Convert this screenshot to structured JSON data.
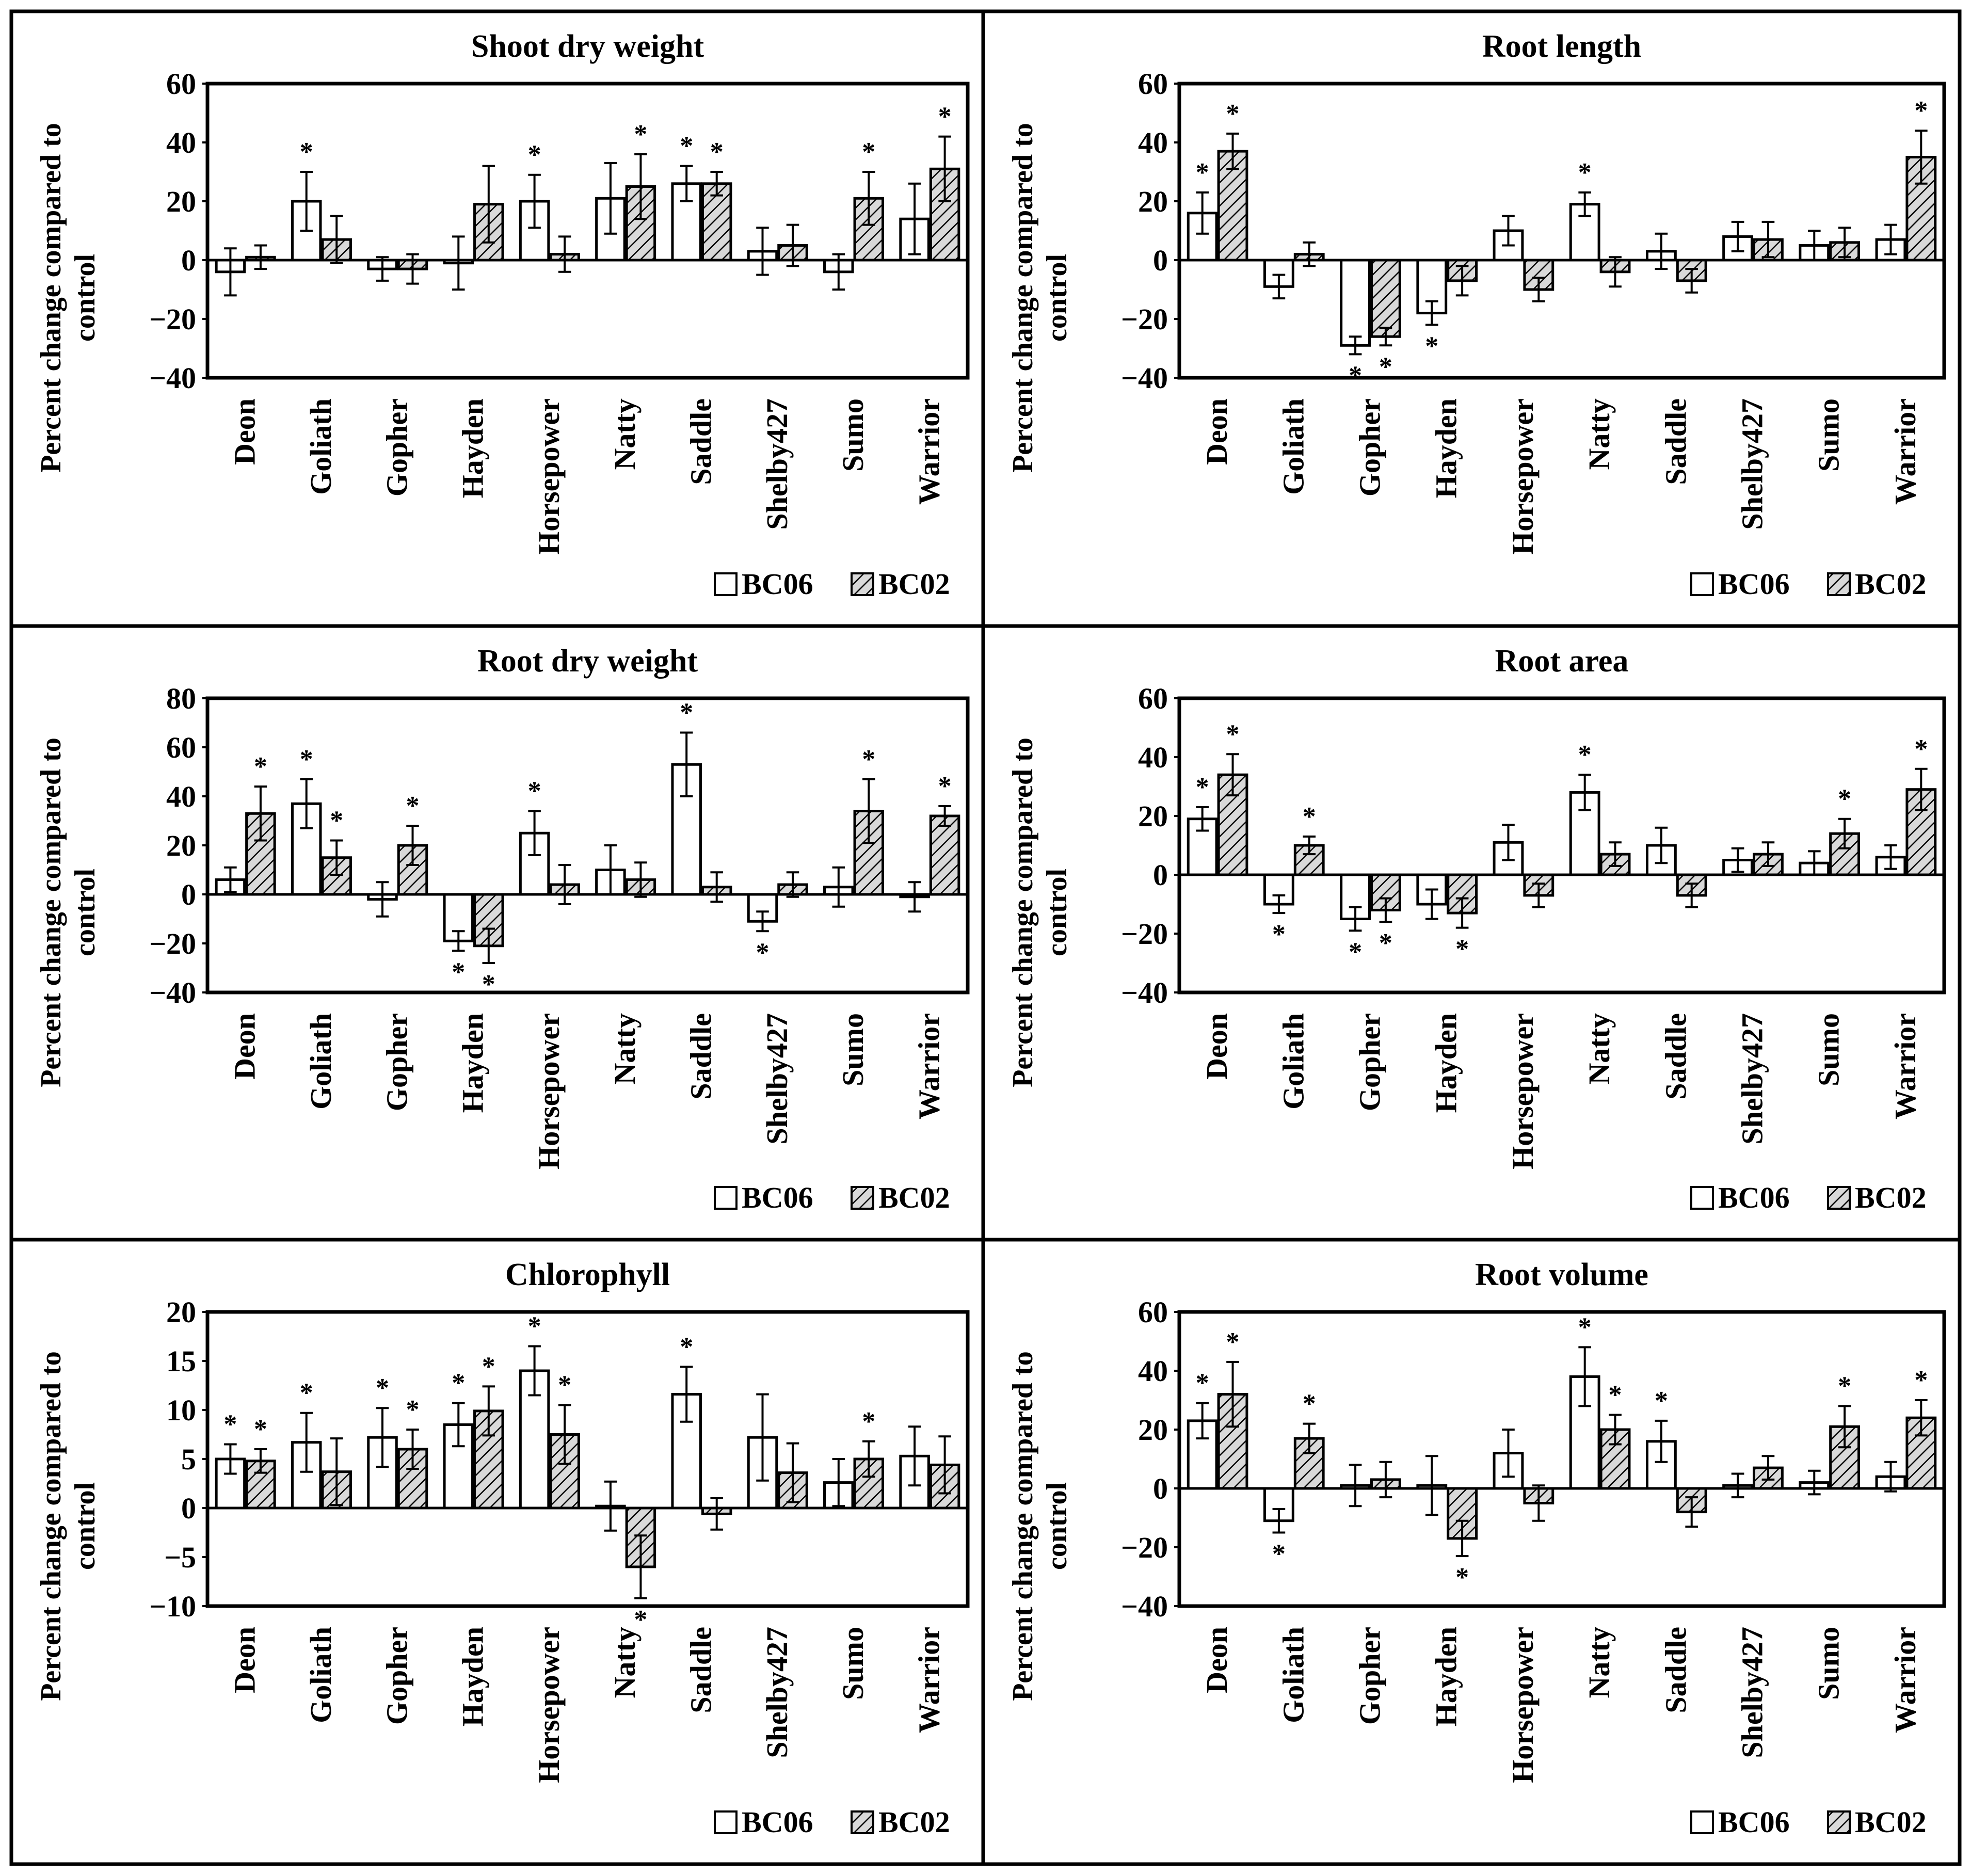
{
  "legend": [
    "BC06",
    "BC02"
  ],
  "colors": {
    "bc06_fill": "#ffffff",
    "bc02_fill": "#d9d9d9",
    "line": "#000000",
    "hatch": "#000000"
  },
  "chart_data": [
    {
      "type": "bar",
      "title": "Shoot dry weight",
      "ylabel": [
        "Percent change compared to",
        "control"
      ],
      "ylim": [
        -40,
        60
      ],
      "yticks": [
        60,
        40,
        20,
        0,
        -20,
        -40
      ],
      "categories": [
        "Deon",
        "Goliath",
        "Gopher",
        "Hayden",
        "Horsepower",
        "Natty",
        "Saddle",
        "Shelby427",
        "Sumo",
        "Warrior"
      ],
      "series": [
        {
          "name": "BC06",
          "values": [
            -4,
            20,
            -3,
            -1,
            20,
            21,
            26,
            3,
            -4,
            14
          ],
          "errors": [
            8,
            10,
            4,
            9,
            9,
            12,
            6,
            8,
            6,
            12
          ],
          "sig": [
            false,
            true,
            false,
            false,
            true,
            false,
            true,
            false,
            false,
            false
          ]
        },
        {
          "name": "BC02",
          "values": [
            1,
            7,
            -3,
            19,
            2,
            25,
            26,
            5,
            21,
            31
          ],
          "errors": [
            4,
            8,
            5,
            13,
            6,
            11,
            4,
            7,
            9,
            11
          ],
          "sig": [
            false,
            false,
            false,
            false,
            false,
            true,
            true,
            false,
            true,
            true
          ]
        }
      ]
    },
    {
      "type": "bar",
      "title": "Root length",
      "ylabel": [
        "Percent change compared to",
        "control"
      ],
      "ylim": [
        -40,
        60
      ],
      "yticks": [
        60,
        40,
        20,
        0,
        -20,
        -40
      ],
      "categories": [
        "Deon",
        "Goliath",
        "Gopher",
        "Hayden",
        "Horsepower",
        "Natty",
        "Saddle",
        "Shelby427",
        "Sumo",
        "Warrior"
      ],
      "series": [
        {
          "name": "BC06",
          "values": [
            16,
            -9,
            -29,
            -18,
            10,
            19,
            3,
            8,
            5,
            7
          ],
          "errors": [
            7,
            4,
            3,
            4,
            5,
            4,
            6,
            5,
            5,
            5
          ],
          "sig": [
            true,
            false,
            true,
            true,
            false,
            true,
            false,
            false,
            false,
            false
          ]
        },
        {
          "name": "BC02",
          "values": [
            37,
            2,
            -26,
            -7,
            -10,
            -4,
            -7,
            7,
            6,
            35
          ],
          "errors": [
            6,
            4,
            3,
            5,
            4,
            5,
            4,
            6,
            5,
            9
          ],
          "sig": [
            true,
            false,
            true,
            false,
            false,
            false,
            false,
            false,
            false,
            true
          ]
        }
      ]
    },
    {
      "type": "bar",
      "title": "Root dry weight",
      "ylabel": [
        "Percent change compared to",
        "control"
      ],
      "ylim": [
        -40,
        80
      ],
      "yticks": [
        80,
        60,
        40,
        20,
        0,
        -20,
        -40
      ],
      "categories": [
        "Deon",
        "Goliath",
        "Gopher",
        "Hayden",
        "Horsepower",
        "Natty",
        "Saddle",
        "Shelby427",
        "Sumo",
        "Warrior"
      ],
      "series": [
        {
          "name": "BC06",
          "values": [
            6,
            37,
            -2,
            -19,
            25,
            10,
            53,
            -11,
            3,
            -1
          ],
          "errors": [
            5,
            10,
            7,
            4,
            9,
            10,
            13,
            4,
            8,
            6
          ],
          "sig": [
            false,
            true,
            false,
            true,
            true,
            false,
            true,
            true,
            false,
            false
          ]
        },
        {
          "name": "BC02",
          "values": [
            33,
            15,
            20,
            -21,
            4,
            6,
            3,
            4,
            34,
            32
          ],
          "errors": [
            11,
            7,
            8,
            7,
            8,
            7,
            6,
            5,
            13,
            4
          ],
          "sig": [
            true,
            true,
            true,
            true,
            false,
            false,
            false,
            false,
            true,
            true
          ]
        }
      ]
    },
    {
      "type": "bar",
      "title": "Root area",
      "ylabel": [
        "Percent change compared to",
        "control"
      ],
      "ylim": [
        -40,
        60
      ],
      "yticks": [
        60,
        40,
        20,
        0,
        -20,
        -40
      ],
      "categories": [
        "Deon",
        "Goliath",
        "Gopher",
        "Hayden",
        "Horsepower",
        "Natty",
        "Saddle",
        "Shelby427",
        "Sumo",
        "Warrior"
      ],
      "series": [
        {
          "name": "BC06",
          "values": [
            19,
            -10,
            -15,
            -10,
            11,
            28,
            10,
            5,
            4,
            6
          ],
          "errors": [
            4,
            3,
            4,
            5,
            6,
            6,
            6,
            4,
            4,
            4
          ],
          "sig": [
            true,
            true,
            true,
            false,
            false,
            true,
            false,
            false,
            false,
            false
          ]
        },
        {
          "name": "BC02",
          "values": [
            34,
            10,
            -12,
            -13,
            -7,
            7,
            -7,
            7,
            14,
            29
          ],
          "errors": [
            7,
            3,
            4,
            5,
            4,
            4,
            4,
            4,
            5,
            7
          ],
          "sig": [
            true,
            true,
            true,
            true,
            false,
            false,
            false,
            false,
            true,
            true
          ]
        }
      ]
    },
    {
      "type": "bar",
      "title": "Chlorophyll",
      "ylabel": [
        "Percent change compared to",
        "control"
      ],
      "ylim": [
        -10,
        20
      ],
      "yticks": [
        20,
        15,
        10,
        5,
        0,
        -5,
        -10
      ],
      "categories": [
        "Deon",
        "Goliath",
        "Gopher",
        "Hayden",
        "Horsepower",
        "Natty",
        "Saddle",
        "Shelby427",
        "Sumo",
        "Warrior"
      ],
      "series": [
        {
          "name": "BC06",
          "values": [
            5,
            6.7,
            7.2,
            8.5,
            14,
            0.2,
            11.6,
            7.2,
            2.6,
            5.3
          ],
          "errors": [
            1.5,
            3,
            3,
            2.2,
            2.5,
            2.5,
            2.8,
            4.4,
            2.4,
            3
          ],
          "sig": [
            true,
            true,
            true,
            true,
            true,
            false,
            true,
            false,
            false,
            false
          ]
        },
        {
          "name": "BC02",
          "values": [
            4.8,
            3.7,
            6,
            9.9,
            7.5,
            -6,
            -0.6,
            3.6,
            5,
            4.4
          ],
          "errors": [
            1.2,
            3.4,
            2,
            2.5,
            3,
            3.2,
            1.6,
            3,
            1.8,
            2.9
          ],
          "sig": [
            true,
            false,
            true,
            true,
            true,
            true,
            false,
            false,
            true,
            false
          ]
        }
      ]
    },
    {
      "type": "bar",
      "title": "Root volume",
      "ylabel": [
        "Percent change compared to",
        "control"
      ],
      "ylim": [
        -40,
        60
      ],
      "yticks": [
        60,
        40,
        20,
        0,
        -20,
        -40
      ],
      "categories": [
        "Deon",
        "Goliath",
        "Gopher",
        "Hayden",
        "Horsepower",
        "Natty",
        "Saddle",
        "Shelby427",
        "Sumo",
        "Warrior"
      ],
      "series": [
        {
          "name": "BC06",
          "values": [
            23,
            -11,
            1,
            1,
            12,
            38,
            16,
            1,
            2,
            4
          ],
          "errors": [
            6,
            4,
            7,
            10,
            8,
            10,
            7,
            4,
            4,
            5
          ],
          "sig": [
            true,
            true,
            false,
            false,
            false,
            true,
            true,
            false,
            false,
            false
          ]
        },
        {
          "name": "BC02",
          "values": [
            32,
            17,
            3,
            -17,
            -5,
            20,
            -8,
            7,
            21,
            24
          ],
          "errors": [
            11,
            5,
            6,
            6,
            6,
            5,
            5,
            4,
            7,
            6
          ],
          "sig": [
            true,
            true,
            false,
            true,
            false,
            true,
            false,
            false,
            true,
            true
          ]
        }
      ]
    }
  ]
}
